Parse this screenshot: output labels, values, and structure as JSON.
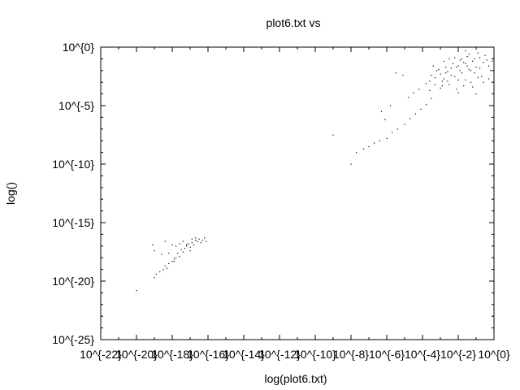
{
  "chart_data": {
    "type": "scatter",
    "title": "plot6.txt vs",
    "xlabel": "log(plot6.txt)",
    "ylabel": "log()",
    "x_scale": "log10",
    "y_scale": "log10",
    "xlim_exp": [
      -22,
      0
    ],
    "ylim_exp": [
      -25,
      0
    ],
    "x_ticks": [
      {
        "exp": -22,
        "label": "10^{-22}"
      },
      {
        "exp": -20,
        "label": "10^{-20}"
      },
      {
        "exp": -18,
        "label": "10^{-18}"
      },
      {
        "exp": -16,
        "label": "10^{-16}"
      },
      {
        "exp": -14,
        "label": "10^{-14}"
      },
      {
        "exp": -12,
        "label": "10^{-12}"
      },
      {
        "exp": -10,
        "label": "10^{-10}"
      },
      {
        "exp": -8,
        "label": "10^{-8}"
      },
      {
        "exp": -6,
        "label": "10^{-6}"
      },
      {
        "exp": -4,
        "label": "10^{-4}"
      },
      {
        "exp": -2,
        "label": "10^{-2}"
      },
      {
        "exp": 0,
        "label": "10^{0}"
      }
    ],
    "y_ticks": [
      {
        "exp": 0,
        "label": "10^{0}"
      },
      {
        "exp": -5,
        "label": "10^{-5}"
      },
      {
        "exp": -10,
        "label": "10^{-10}"
      },
      {
        "exp": -15,
        "label": "10^{-15}"
      },
      {
        "exp": -20,
        "label": "10^{-20}"
      },
      {
        "exp": -25,
        "label": "10^{-25}"
      }
    ],
    "grid": false,
    "legend": "none",
    "point_color": "#000000",
    "points": [
      [
        -20.0,
        -20.8
      ],
      [
        -19.0,
        -19.7
      ],
      [
        -18.9,
        -19.4
      ],
      [
        -18.7,
        -19.2
      ],
      [
        -18.5,
        -19.0
      ],
      [
        -18.4,
        -18.7
      ],
      [
        -18.3,
        -18.9
      ],
      [
        -18.2,
        -18.5
      ],
      [
        -18.0,
        -18.3
      ],
      [
        -17.9,
        -18.1
      ],
      [
        -17.8,
        -18.0
      ],
      [
        -17.7,
        -17.6
      ],
      [
        -17.6,
        -17.9
      ],
      [
        -17.5,
        -17.3
      ],
      [
        -17.4,
        -17.5
      ],
      [
        -17.3,
        -17.2
      ],
      [
        -17.2,
        -17.0
      ],
      [
        -17.1,
        -16.8
      ],
      [
        -17.0,
        -17.1
      ],
      [
        -16.9,
        -16.7
      ],
      [
        -16.8,
        -16.9
      ],
      [
        -16.7,
        -16.5
      ],
      [
        -16.6,
        -16.6
      ],
      [
        -16.5,
        -16.4
      ],
      [
        -16.4,
        -16.7
      ],
      [
        -16.3,
        -16.5
      ],
      [
        -16.2,
        -16.3
      ],
      [
        -16.1,
        -16.6
      ],
      [
        -16.9,
        -16.4
      ],
      [
        -17.2,
        -16.9
      ],
      [
        -17.6,
        -16.8
      ],
      [
        -18.0,
        -16.9
      ],
      [
        -18.4,
        -16.6
      ],
      [
        -19.1,
        -16.9
      ],
      [
        -19.0,
        -17.4
      ],
      [
        -18.6,
        -17.7
      ],
      [
        -17.8,
        -17.0
      ],
      [
        -17.4,
        -16.6
      ],
      [
        -16.7,
        -16.3
      ],
      [
        -17.9,
        -18.3
      ],
      [
        -18.2,
        -17.6
      ],
      [
        -17.0,
        -17.4
      ],
      [
        -8.0,
        -10.0
      ],
      [
        -7.7,
        -9.0
      ],
      [
        -7.3,
        -8.7
      ],
      [
        -7.0,
        -8.5
      ],
      [
        -6.7,
        -8.2
      ],
      [
        -6.4,
        -8.0
      ],
      [
        -6.0,
        -7.8
      ],
      [
        -5.7,
        -7.3
      ],
      [
        -5.4,
        -7.0
      ],
      [
        -5.0,
        -6.6
      ],
      [
        -4.7,
        -6.1
      ],
      [
        -4.4,
        -5.7
      ],
      [
        -4.1,
        -5.3
      ],
      [
        -3.8,
        -4.9
      ],
      [
        -3.5,
        -4.4
      ],
      [
        -5.8,
        -5.0
      ],
      [
        -6.3,
        -5.5
      ],
      [
        -6.1,
        -6.2
      ],
      [
        -4.8,
        -4.3
      ],
      [
        -4.5,
        -3.9
      ],
      [
        -4.2,
        -3.6
      ],
      [
        -3.3,
        -3.2
      ],
      [
        -3.6,
        -3.7
      ],
      [
        -5.1,
        -2.4
      ],
      [
        -5.5,
        -2.2
      ],
      [
        -9.0,
        -7.5
      ],
      [
        -3.2,
        -2.0
      ],
      [
        -3.0,
        -2.3
      ],
      [
        -2.8,
        -2.7
      ],
      [
        -2.6,
        -2.1
      ],
      [
        -2.4,
        -1.8
      ],
      [
        -2.2,
        -2.5
      ],
      [
        -2.0,
        -1.6
      ],
      [
        -1.8,
        -2.2
      ],
      [
        -1.6,
        -1.4
      ],
      [
        -1.4,
        -1.9
      ],
      [
        -1.2,
        -1.2
      ],
      [
        -1.0,
        -1.7
      ],
      [
        -0.8,
        -0.9
      ],
      [
        -0.6,
        -1.3
      ],
      [
        -0.9,
        -2.6
      ],
      [
        -1.3,
        -3.0
      ],
      [
        -1.7,
        -3.3
      ],
      [
        -2.1,
        -3.6
      ],
      [
        -2.5,
        -3.2
      ],
      [
        -2.9,
        -2.9
      ],
      [
        -3.3,
        -2.6
      ],
      [
        -1.5,
        -0.8
      ],
      [
        -1.9,
        -1.1
      ],
      [
        -2.3,
        -1.4
      ],
      [
        -2.7,
        -1.7
      ],
      [
        -3.1,
        -1.9
      ],
      [
        -1.1,
        -2.2
      ],
      [
        -0.7,
        -2.5
      ],
      [
        -1.0,
        -4.0
      ],
      [
        -2.0,
        -3.9
      ],
      [
        -3.0,
        -3.5
      ],
      [
        -1.6,
        -2.8
      ],
      [
        -2.8,
        -1.2
      ],
      [
        -0.5,
        -0.7
      ],
      [
        -0.3,
        -1.6
      ],
      [
        -0.2,
        -2.0
      ],
      [
        -1.4,
        -0.6
      ],
      [
        -2.2,
        -0.9
      ],
      [
        -3.5,
        -2.4
      ],
      [
        -3.8,
        -3.1
      ],
      [
        -1.8,
        -1.0
      ],
      [
        -2.6,
        -2.9
      ],
      [
        -0.4,
        -1.1
      ],
      [
        -1.2,
        -3.4
      ],
      [
        -2.4,
        -2.4
      ],
      [
        -1.9,
        -2.0
      ],
      [
        -1.5,
        -1.6
      ],
      [
        -1.1,
        -1.0
      ],
      [
        -0.8,
        -1.8
      ],
      [
        -2.0,
        -2.8
      ],
      [
        -2.7,
        -2.2
      ],
      [
        -3.4,
        -1.6
      ],
      [
        -3.6,
        -2.9
      ],
      [
        -0.6,
        -3.0
      ],
      [
        -1.3,
        -2.0
      ],
      [
        -1.7,
        -1.3
      ],
      [
        -2.1,
        -1.7
      ],
      [
        -2.5,
        -1.0
      ],
      [
        -2.9,
        -3.3
      ],
      [
        -0.9,
        -0.5
      ],
      [
        -1.6,
        -0.3
      ],
      [
        -0.1,
        -1.2
      ],
      [
        -0.3,
        -2.7
      ]
    ]
  }
}
